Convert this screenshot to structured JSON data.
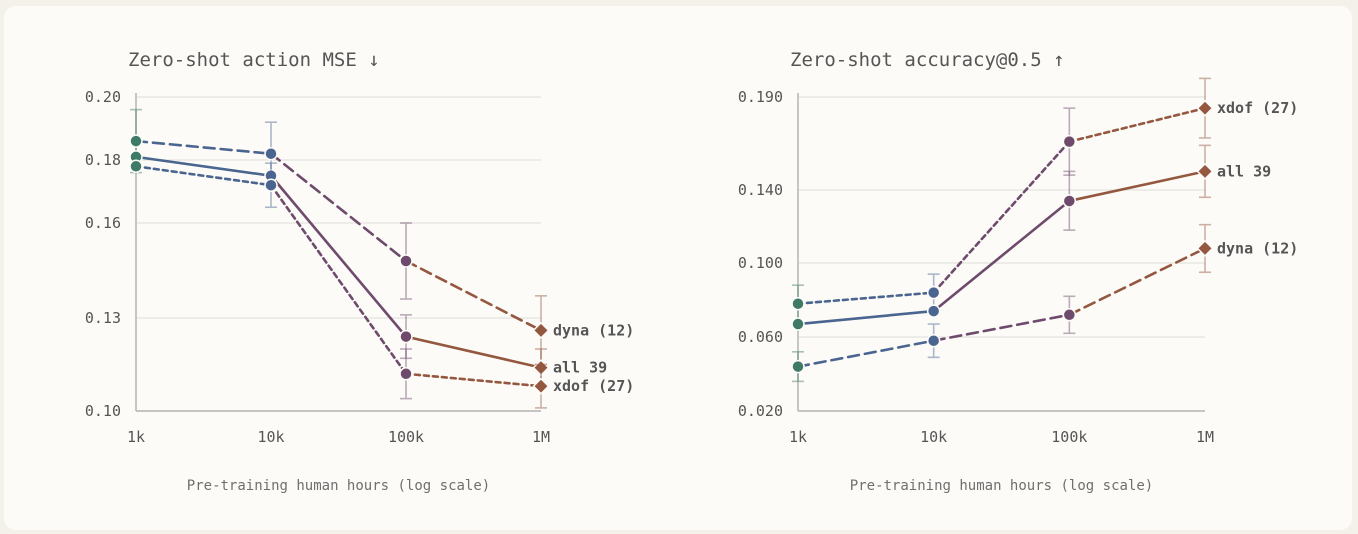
{
  "colors": {
    "blue": "#4a6590",
    "plum": "#6e4a6c",
    "rust": "#94573f",
    "green": "#3f7a68",
    "grid": "#e6e4df",
    "axis": "#b5b5b5"
  },
  "chart_data": [
    {
      "type": "line",
      "title": "Zero-shot action MSE ↓",
      "xlabel": "Pre-training human hours (log scale)",
      "ylabel": "",
      "x_scale": "log",
      "x_tick_labels": [
        "1k",
        "10k",
        "100k",
        "1M"
      ],
      "y_ticks": [
        0.1,
        0.13,
        0.16,
        0.18,
        0.2
      ],
      "y_tick_labels": [
        "0.10",
        "0.13",
        "0.16",
        "0.18",
        "0.20"
      ],
      "ylim": [
        0.1,
        0.2
      ],
      "grid": true,
      "series": [
        {
          "name": "dyna (12)",
          "dash": "long",
          "points": [
            {
              "x": "1k",
              "y": 0.186,
              "err": 0.01,
              "color": "green",
              "marker": "circle"
            },
            {
              "x": "10k",
              "y": 0.182,
              "err": 0.01,
              "color": "blue",
              "marker": "circle"
            },
            {
              "x": "100k",
              "y": 0.148,
              "err": 0.012,
              "color": "plum",
              "marker": "circle"
            },
            {
              "x": "1M",
              "y": 0.126,
              "err": 0.011,
              "color": "rust",
              "marker": "diamond"
            }
          ]
        },
        {
          "name": "all 39",
          "dash": "solid",
          "points": [
            {
              "x": "1k",
              "y": 0.181,
              "color": "green",
              "marker": "circle"
            },
            {
              "x": "10k",
              "y": 0.175,
              "color": "blue",
              "marker": "circle"
            },
            {
              "x": "100k",
              "y": 0.124,
              "err": 0.007,
              "color": "plum",
              "marker": "circle"
            },
            {
              "x": "1M",
              "y": 0.114,
              "err": 0.006,
              "color": "rust",
              "marker": "diamond"
            }
          ]
        },
        {
          "name": "xdof (27)",
          "dash": "short",
          "points": [
            {
              "x": "1k",
              "y": 0.178,
              "color": "green",
              "marker": "circle"
            },
            {
              "x": "10k",
              "y": 0.172,
              "err": 0.007,
              "color": "blue",
              "marker": "circle"
            },
            {
              "x": "100k",
              "y": 0.112,
              "err": 0.008,
              "color": "plum",
              "marker": "circle"
            },
            {
              "x": "1M",
              "y": 0.108,
              "err": 0.007,
              "color": "rust",
              "marker": "diamond"
            }
          ]
        }
      ]
    },
    {
      "type": "line",
      "title": "Zero-shot accuracy@0.5 ↑",
      "xlabel": "Pre-training human hours (log scale)",
      "ylabel": "",
      "x_scale": "log",
      "x_tick_labels": [
        "1k",
        "10k",
        "100k",
        "1M"
      ],
      "y_ticks": [
        0.02,
        0.06,
        0.1,
        0.14,
        0.19
      ],
      "y_tick_labels": [
        "0.020",
        "0.060",
        "0.100",
        "0.140",
        "0.190"
      ],
      "ylim": [
        0.02,
        0.19
      ],
      "grid": true,
      "series": [
        {
          "name": "xdof (27)",
          "dash": "short",
          "points": [
            {
              "x": "1k",
              "y": 0.078,
              "err": 0.01,
              "color": "green",
              "marker": "circle"
            },
            {
              "x": "10k",
              "y": 0.084,
              "err": 0.01,
              "color": "blue",
              "marker": "circle"
            },
            {
              "x": "100k",
              "y": 0.166,
              "err": 0.018,
              "color": "plum",
              "marker": "circle"
            },
            {
              "x": "1M",
              "y": 0.184,
              "err": 0.016,
              "color": "rust",
              "marker": "diamond"
            }
          ]
        },
        {
          "name": "all 39",
          "dash": "solid",
          "points": [
            {
              "x": "1k",
              "y": 0.067,
              "color": "green",
              "marker": "circle"
            },
            {
              "x": "10k",
              "y": 0.074,
              "color": "blue",
              "marker": "circle"
            },
            {
              "x": "100k",
              "y": 0.134,
              "err": 0.016,
              "color": "plum",
              "marker": "circle"
            },
            {
              "x": "1M",
              "y": 0.15,
              "err": 0.014,
              "color": "rust",
              "marker": "diamond"
            }
          ]
        },
        {
          "name": "dyna (12)",
          "dash": "long",
          "points": [
            {
              "x": "1k",
              "y": 0.044,
              "err": 0.008,
              "color": "green",
              "marker": "circle"
            },
            {
              "x": "10k",
              "y": 0.058,
              "err": 0.009,
              "color": "blue",
              "marker": "circle"
            },
            {
              "x": "100k",
              "y": 0.072,
              "err": 0.01,
              "color": "plum",
              "marker": "circle"
            },
            {
              "x": "1M",
              "y": 0.108,
              "err": 0.013,
              "color": "rust",
              "marker": "diamond"
            }
          ]
        }
      ]
    }
  ]
}
